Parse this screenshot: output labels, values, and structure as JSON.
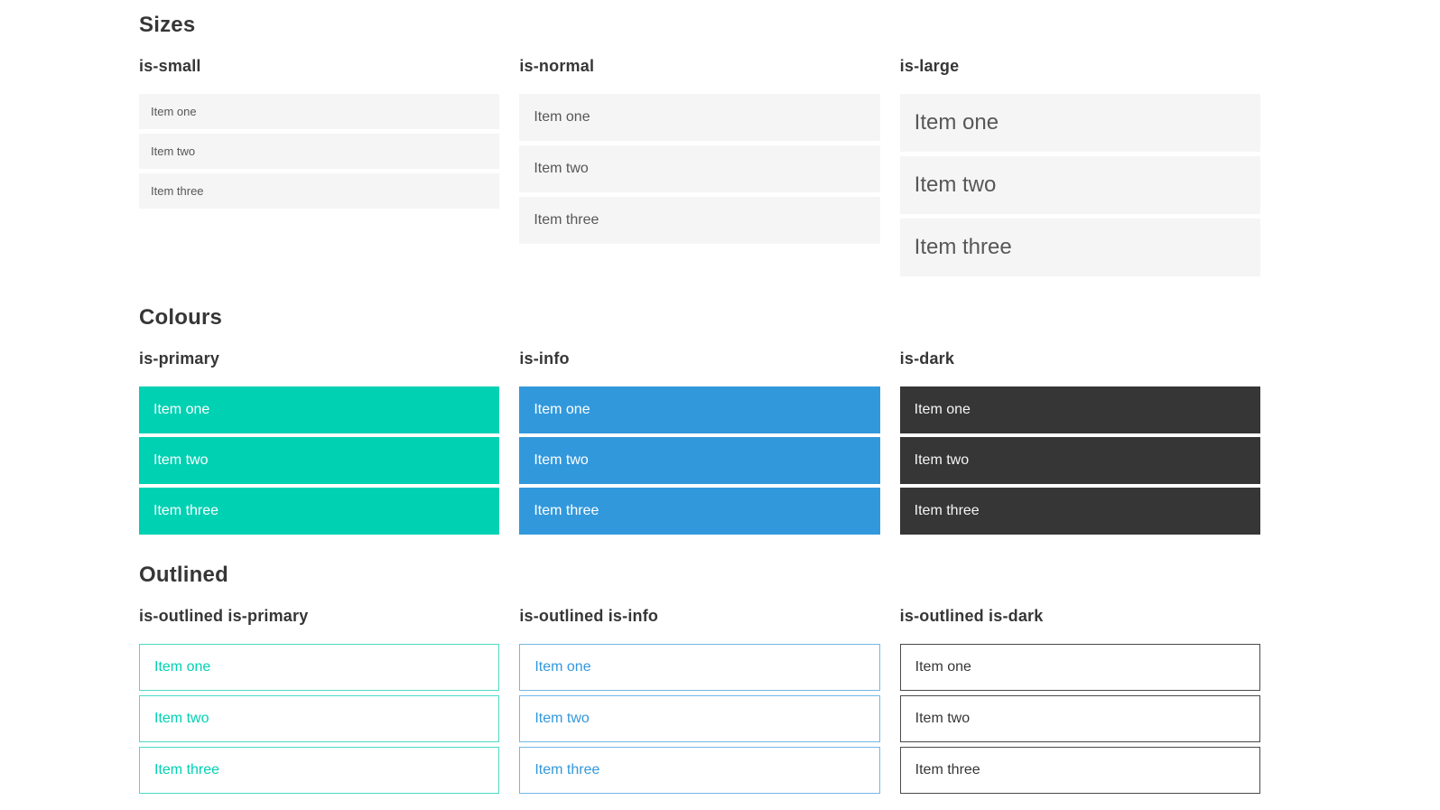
{
  "palette": {
    "primary": "#00d1b2",
    "primary-border": "#4fdac5",
    "info": "#3298dc",
    "info-border": "#74b7e6",
    "dark": "#363636",
    "dark-border": "#4a4a4a",
    "light": "#f5f5f5",
    "heading": "#363636",
    "itemtext": "#575757"
  },
  "sections": [
    {
      "title": "Sizes",
      "groups": [
        {
          "label": "is-small",
          "items": [
            "Item one",
            "Item two",
            "Item three"
          ]
        },
        {
          "label": "is-normal",
          "items": [
            "Item one",
            "Item two",
            "Item three"
          ]
        },
        {
          "label": "is-large",
          "items": [
            "Item one",
            "Item two",
            "Item three"
          ]
        }
      ]
    },
    {
      "title": "Colours",
      "groups": [
        {
          "label": "is-primary",
          "items": [
            "Item one",
            "Item two",
            "Item three"
          ]
        },
        {
          "label": "is-info",
          "items": [
            "Item one",
            "Item two",
            "Item three"
          ]
        },
        {
          "label": "is-dark",
          "items": [
            "Item one",
            "Item two",
            "Item three"
          ]
        }
      ]
    },
    {
      "title": "Outlined",
      "groups": [
        {
          "label": "is-outlined is-primary",
          "items": [
            "Item one",
            "Item two",
            "Item three"
          ]
        },
        {
          "label": "is-outlined is-info",
          "items": [
            "Item one",
            "Item two",
            "Item three"
          ]
        },
        {
          "label": "is-outlined is-dark",
          "items": [
            "Item one",
            "Item two",
            "Item three"
          ]
        }
      ]
    }
  ]
}
